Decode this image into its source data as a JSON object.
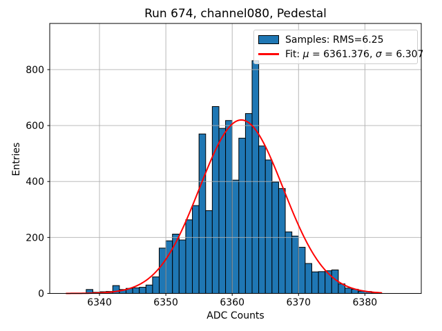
{
  "figure": {
    "title": "Run 674, channel080, Pedestal",
    "xlabel": "ADC Counts",
    "ylabel": "Entries"
  },
  "legend": {
    "samples_label": "Samples: RMS=6.25",
    "fit_prefix": "Fit: ",
    "fit_mu_symbol": "μ",
    "fit_mu_value": " = 6361.376, ",
    "fit_sigma_symbol": "σ",
    "fit_sigma_value": " = 6.307"
  },
  "chart_data": {
    "type": "bar",
    "subtype": "histogram-with-gaussian-fit",
    "title": "Run 674, channel080, Pedestal",
    "xlabel": "ADC Counts",
    "ylabel": "Entries",
    "xlim": [
      6332.5,
      6388.5
    ],
    "ylim": [
      0,
      965
    ],
    "xticks": [
      6340,
      6350,
      6360,
      6370,
      6380
    ],
    "yticks": [
      0,
      200,
      400,
      600,
      800
    ],
    "grid": true,
    "legend_position": "upper right",
    "legend_entries": [
      "Samples: RMS=6.25",
      "Fit: μ = 6361.376, σ = 6.307"
    ],
    "bin_width": 1,
    "first_bin_left_edge": 6338,
    "counts": [
      14,
      4,
      6,
      7,
      28,
      14,
      18,
      20,
      22,
      30,
      59,
      162,
      188,
      212,
      191,
      263,
      314,
      570,
      296,
      668,
      590,
      618,
      405,
      555,
      643,
      832,
      527,
      477,
      398,
      375,
      220,
      205,
      165,
      107,
      77,
      78,
      81,
      84,
      34,
      19,
      15,
      8,
      7,
      3
    ],
    "fit_curve": {
      "type": "gaussian",
      "mu": 6361.376,
      "sigma": 6.307,
      "amplitude": 620,
      "x_start": 6335,
      "x_end": 6382.5
    },
    "stats": {
      "rms": 6.25,
      "fit_mu": 6361.376,
      "fit_sigma": 6.307
    },
    "colors": {
      "bar_fill": "#1f77b4",
      "bar_edge": "#000000",
      "fit_line": "#ff0000",
      "grid_line": "#b0b0b0",
      "spine": "#000000",
      "background": "#ffffff"
    }
  }
}
